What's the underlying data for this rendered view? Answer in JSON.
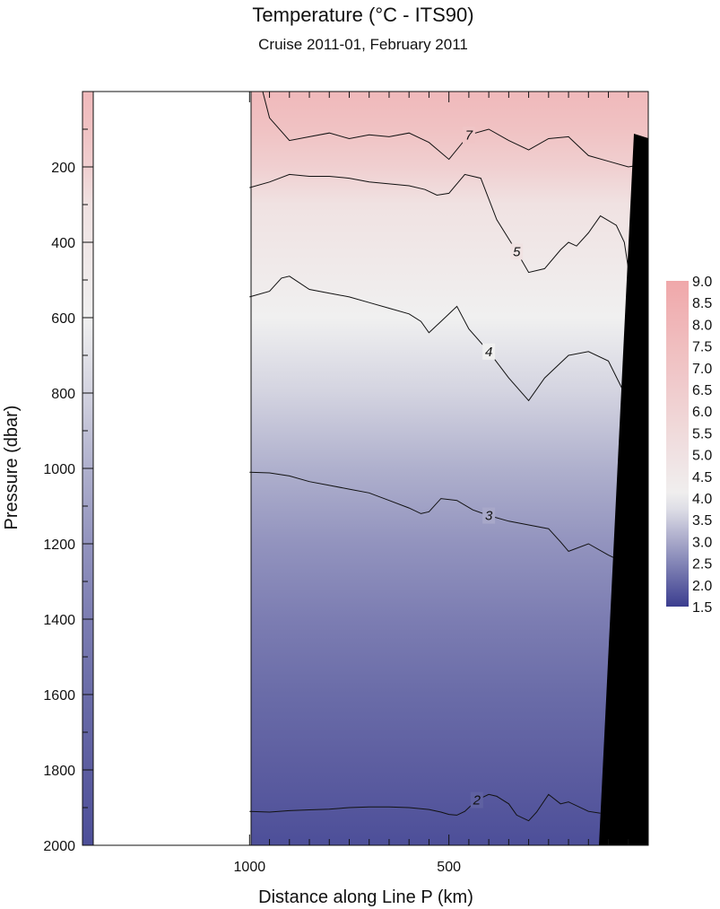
{
  "chart_data": {
    "type": "heatmap",
    "title": "Temperature  (°C - ITS90)",
    "subtitle": "Cruise 2011-01,  February 2011",
    "xlabel": "Distance along Line P  (km)",
    "ylabel": "Pressure  (dbar)",
    "y_reversed": true,
    "xlim": [
      1419,
      0
    ],
    "ylim": [
      0,
      2000
    ],
    "x_ticks": [
      1000,
      500
    ],
    "y_ticks": [
      200,
      400,
      600,
      800,
      1000,
      1200,
      1400,
      1600,
      1800,
      2000
    ],
    "colorbar": {
      "min": 1.5,
      "max": 9.0,
      "ticks": [
        "9.0",
        "8.5",
        "8.0",
        "7.5",
        "7.0",
        "6.5",
        "6.0",
        "5.5",
        "5.0",
        "4.5",
        "4.0",
        "3.5",
        "3.0",
        "2.5",
        "2.0",
        "1.5"
      ],
      "low_color": "#3b3d8f",
      "mid_color": "#f0f0f0",
      "high_color": "#f0a8aa",
      "mid_value": 4.0
    },
    "no_data_region_x": [
      1419,
      1000
    ],
    "contours": [
      {
        "level": 7,
        "label": "7",
        "x": [
          967,
          950,
          900,
          850,
          800,
          750,
          700,
          650,
          600,
          550,
          500,
          450,
          400,
          350,
          300,
          250,
          200,
          150,
          100,
          50,
          20
        ],
        "y": [
          0,
          70,
          130,
          120,
          110,
          125,
          115,
          120,
          110,
          135,
          180,
          115,
          100,
          130,
          155,
          125,
          120,
          170,
          185,
          200,
          195
        ]
      },
      {
        "level": 5,
        "label": "5",
        "x": [
          1000,
          950,
          900,
          850,
          800,
          750,
          700,
          650,
          600,
          560,
          530,
          500,
          460,
          420,
          380,
          330,
          300,
          260,
          220,
          200,
          180,
          150,
          120,
          80,
          60,
          50,
          40,
          30
        ],
        "y": [
          255,
          240,
          220,
          225,
          225,
          230,
          240,
          245,
          250,
          260,
          275,
          270,
          220,
          230,
          340,
          425,
          480,
          470,
          420,
          400,
          410,
          375,
          330,
          355,
          400,
          470,
          490,
          480
        ]
      },
      {
        "level": 4,
        "label": "4",
        "x": [
          1000,
          950,
          920,
          900,
          850,
          800,
          750,
          700,
          650,
          600,
          570,
          550,
          520,
          480,
          450,
          400,
          350,
          300,
          260,
          220,
          200,
          150,
          100,
          60,
          40,
          30,
          25,
          20
        ],
        "y": [
          545,
          530,
          495,
          490,
          525,
          535,
          545,
          560,
          575,
          590,
          610,
          640,
          610,
          570,
          630,
          690,
          760,
          820,
          760,
          720,
          700,
          690,
          715,
          800,
          850,
          900,
          940,
          990
        ]
      },
      {
        "level": 3,
        "label": "3",
        "x": [
          1000,
          950,
          900,
          850,
          800,
          750,
          700,
          650,
          600,
          570,
          550,
          520,
          480,
          440,
          400,
          350,
          300,
          250,
          220,
          200,
          150,
          100,
          60,
          40,
          30,
          20
        ],
        "y": [
          1010,
          1012,
          1020,
          1035,
          1045,
          1055,
          1065,
          1085,
          1105,
          1120,
          1115,
          1080,
          1085,
          1110,
          1125,
          1140,
          1150,
          1160,
          1195,
          1220,
          1200,
          1230,
          1250,
          1270,
          1290,
          1300
        ]
      },
      {
        "level": 2,
        "label": "2",
        "x": [
          1000,
          950,
          900,
          850,
          800,
          750,
          700,
          650,
          600,
          550,
          520,
          500,
          480,
          460,
          430,
          400,
          380,
          350,
          330,
          300,
          280,
          250,
          220,
          200,
          150,
          120
        ],
        "y": [
          1910,
          1912,
          1908,
          1906,
          1904,
          1900,
          1898,
          1898,
          1900,
          1905,
          1912,
          1918,
          1920,
          1910,
          1880,
          1865,
          1870,
          1890,
          1920,
          1935,
          1912,
          1865,
          1890,
          1885,
          1910,
          1915
        ]
      }
    ],
    "field_profile": [
      {
        "p": 0,
        "t": 7.8
      },
      {
        "p": 100,
        "t": 7.2
      },
      {
        "p": 200,
        "t": 6.3
      },
      {
        "p": 300,
        "t": 5.0
      },
      {
        "p": 450,
        "t": 4.5
      },
      {
        "p": 600,
        "t": 4.0
      },
      {
        "p": 800,
        "t": 3.6
      },
      {
        "p": 1000,
        "t": 3.1
      },
      {
        "p": 1200,
        "t": 2.7
      },
      {
        "p": 1400,
        "t": 2.4
      },
      {
        "p": 1600,
        "t": 2.15
      },
      {
        "p": 1800,
        "t": 1.95
      },
      {
        "p": 2000,
        "t": 1.75
      }
    ]
  }
}
